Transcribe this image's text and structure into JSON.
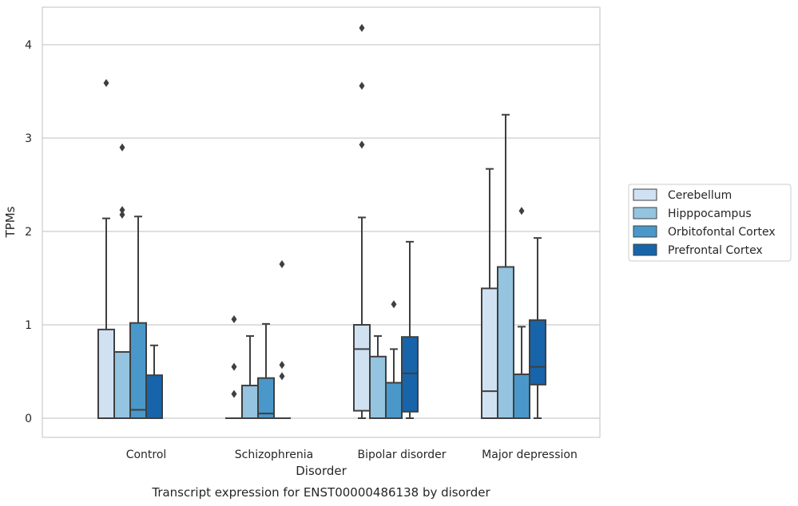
{
  "chart_data": {
    "type": "box",
    "title": "",
    "caption": "Transcript expression for ENST00000486138 by disorder",
    "xlabel": "Disorder",
    "ylabel": "TPMs",
    "ylim": [
      -0.2,
      4.4
    ],
    "yticks": [
      0,
      1,
      2,
      3,
      4
    ],
    "grid": true,
    "legend_position": "right",
    "categories": [
      "Control",
      "Schizophrenia",
      "Bipolar disorder",
      "Major depression"
    ],
    "series": [
      {
        "name": "Cerebellum",
        "color": "#d0e1f2",
        "boxes": [
          {
            "whisker_low": 0,
            "q1": 0,
            "median": 0,
            "q3": 0.95,
            "whisker_high": 2.14,
            "outliers": [
              3.59
            ]
          },
          {
            "whisker_low": 0,
            "q1": 0,
            "median": 0,
            "q3": 0,
            "whisker_high": 0,
            "outliers": [
              1.06,
              0.55,
              0.26
            ]
          },
          {
            "whisker_low": 0,
            "q1": 0.08,
            "median": 0.74,
            "q3": 1.0,
            "whisker_high": 2.15,
            "outliers": [
              4.18,
              3.56,
              2.93
            ]
          },
          {
            "whisker_low": 0,
            "q1": 0,
            "median": 0.29,
            "q3": 1.39,
            "whisker_high": 2.67,
            "outliers": []
          }
        ]
      },
      {
        "name": "Hipppocampus",
        "color": "#94c4df",
        "boxes": [
          {
            "whisker_low": 0,
            "q1": 0,
            "median": 0,
            "q3": 0.71,
            "whisker_high": 0.71,
            "outliers": [
              2.9,
              2.23,
              2.18
            ]
          },
          {
            "whisker_low": 0,
            "q1": 0,
            "median": 0,
            "q3": 0.35,
            "whisker_high": 0.88,
            "outliers": []
          },
          {
            "whisker_low": 0,
            "q1": 0,
            "median": 0,
            "q3": 0.66,
            "whisker_high": 0.88,
            "outliers": []
          },
          {
            "whisker_low": 0,
            "q1": 0,
            "median": 0,
            "q3": 1.62,
            "whisker_high": 3.25,
            "outliers": []
          }
        ]
      },
      {
        "name": "Orbitofontal Cortex",
        "color": "#4a98c9",
        "boxes": [
          {
            "whisker_low": 0,
            "q1": 0,
            "median": 0.09,
            "q3": 1.02,
            "whisker_high": 2.16,
            "outliers": []
          },
          {
            "whisker_low": 0,
            "q1": 0,
            "median": 0.05,
            "q3": 0.43,
            "whisker_high": 1.01,
            "outliers": []
          },
          {
            "whisker_low": 0,
            "q1": 0,
            "median": 0,
            "q3": 0.38,
            "whisker_high": 0.74,
            "outliers": [
              1.22
            ]
          },
          {
            "whisker_low": 0,
            "q1": 0,
            "median": 0,
            "q3": 0.47,
            "whisker_high": 0.98,
            "outliers": [
              2.22
            ]
          }
        ]
      },
      {
        "name": "Prefrontal Cortex",
        "color": "#1764ab",
        "boxes": [
          {
            "whisker_low": 0,
            "q1": 0,
            "median": 0,
            "q3": 0.46,
            "whisker_high": 0.78,
            "outliers": []
          },
          {
            "whisker_low": 0,
            "q1": 0,
            "median": 0,
            "q3": 0,
            "whisker_high": 0,
            "outliers": [
              1.65,
              0.57,
              0.45
            ]
          },
          {
            "whisker_low": 0,
            "q1": 0.07,
            "median": 0.48,
            "q3": 0.87,
            "whisker_high": 1.89,
            "outliers": []
          },
          {
            "whisker_low": 0,
            "q1": 0.36,
            "median": 0.55,
            "q3": 1.05,
            "whisker_high": 1.93,
            "outliers": []
          }
        ]
      }
    ]
  }
}
